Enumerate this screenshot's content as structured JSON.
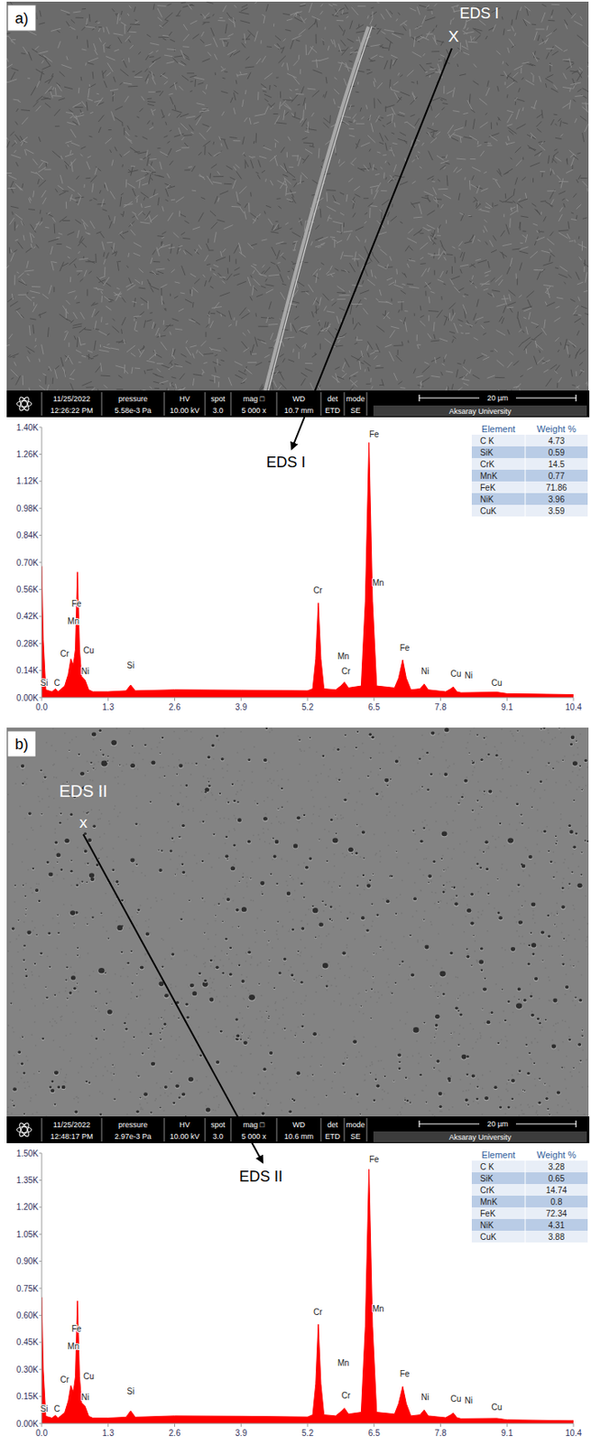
{
  "figure": {
    "panels": [
      {
        "letter": "a)",
        "point_label": "EDS I",
        "point_marker": "X",
        "spectrum_label": "EDS I",
        "info_bar": {
          "date": "11/25/2022",
          "time": "12:26:22 PM",
          "fields": [
            {
              "name": "pressure",
              "value": "5.58e-3 Pa"
            },
            {
              "name": "HV",
              "value": "10.00 kV"
            },
            {
              "name": "spot",
              "value": "3.0"
            },
            {
              "name": "mag □",
              "value": "5 000 x"
            },
            {
              "name": "WD",
              "value": "10.7 mm"
            },
            {
              "name": "det",
              "value": "ETD"
            },
            {
              "name": "mode",
              "value": "SE"
            }
          ],
          "scale_bar": "20 µm",
          "institution": "Aksaray University"
        },
        "table": {
          "header": [
            "Element",
            "Weight %"
          ],
          "rows": [
            [
              "C K",
              4.73
            ],
            [
              "SiK",
              0.59
            ],
            [
              "CrK",
              14.5
            ],
            [
              "MnK",
              0.77
            ],
            [
              "FeK",
              71.86
            ],
            [
              "NiK",
              3.96
            ],
            [
              "CuK",
              3.59
            ]
          ]
        }
      },
      {
        "letter": "b)",
        "point_label": "EDS II",
        "point_marker": "x",
        "spectrum_label": "EDS II",
        "info_bar": {
          "date": "11/25/2022",
          "time": "12:48:17 PM",
          "fields": [
            {
              "name": "pressure",
              "value": "2.97e-3 Pa"
            },
            {
              "name": "HV",
              "value": "10.00 kV"
            },
            {
              "name": "spot",
              "value": "3.0"
            },
            {
              "name": "mag □",
              "value": "5 000 x"
            },
            {
              "name": "WD",
              "value": "10.6 mm"
            },
            {
              "name": "det",
              "value": "ETD"
            },
            {
              "name": "mode",
              "value": "SE"
            }
          ],
          "scale_bar": "20 µm",
          "institution": "Aksaray University"
        },
        "table": {
          "header": [
            "Element",
            "Weight %"
          ],
          "rows": [
            [
              "C K",
              3.28
            ],
            [
              "SiK",
              0.65
            ],
            [
              "CrK",
              14.74
            ],
            [
              "MnK",
              0.8
            ],
            [
              "FeK",
              72.34
            ],
            [
              "NiK",
              4.31
            ],
            [
              "CuK",
              3.88
            ]
          ]
        }
      }
    ]
  },
  "chart_data": [
    {
      "type": "area",
      "color": "#ff0000",
      "x": [
        0,
        0.03,
        0.08,
        0.2,
        0.27,
        0.32,
        0.45,
        0.52,
        0.57,
        0.62,
        0.66,
        0.7,
        0.74,
        0.78,
        0.85,
        0.92,
        1.0,
        1.3,
        1.65,
        1.74,
        1.83,
        2.6,
        3.9,
        5.2,
        5.3,
        5.36,
        5.41,
        5.46,
        5.52,
        5.75,
        5.85,
        5.92,
        6.0,
        6.25,
        6.33,
        6.4,
        6.47,
        6.55,
        6.9,
        6.98,
        7.06,
        7.13,
        7.22,
        7.4,
        7.48,
        7.56,
        7.9,
        8.0,
        8.05,
        8.12,
        8.2,
        8.9,
        9.1,
        10.4
      ],
      "values": [
        680,
        300,
        40,
        30,
        45,
        30,
        60,
        120,
        200,
        170,
        250,
        650,
        250,
        110,
        90,
        40,
        30,
        30,
        35,
        65,
        35,
        40,
        38,
        35,
        45,
        200,
        490,
        200,
        45,
        40,
        60,
        80,
        50,
        60,
        500,
        1320,
        500,
        60,
        50,
        100,
        195,
        100,
        40,
        45,
        70,
        40,
        30,
        45,
        55,
        30,
        25,
        28,
        20,
        15
      ],
      "xlim": [
        0,
        10.4
      ],
      "xticks": [
        {
          "value": 0,
          "label": "0.0"
        },
        1.3,
        2.6,
        3.9,
        5.2,
        6.5,
        7.8,
        9.1,
        10.4
      ],
      "ylim": [
        0,
        1400
      ],
      "yticks": [
        {
          "value": 0,
          "label": "0.00K"
        },
        {
          "value": 140,
          "label": "0.14K"
        },
        {
          "value": 280,
          "label": "0.28K"
        },
        {
          "value": 420,
          "label": "0.42K"
        },
        {
          "value": 560,
          "label": "0.56K"
        },
        {
          "value": 700,
          "label": "0.70K"
        },
        {
          "value": 840,
          "label": "0.84K"
        },
        {
          "value": 980,
          "label": "0.98K"
        },
        {
          "value": 1120,
          "label": "1.12K"
        },
        {
          "value": 1260,
          "label": "1.26K"
        },
        {
          "value": 1400,
          "label": "1.40K"
        }
      ],
      "grid": false,
      "annotations": [
        {
          "text": "Si",
          "x": 0.05,
          "y": 60
        },
        {
          "text": "C",
          "x": 0.3,
          "y": 60
        },
        {
          "text": "Cr",
          "x": 0.45,
          "y": 210
        },
        {
          "text": "Mn",
          "x": 0.62,
          "y": 380
        },
        {
          "text": "Fe",
          "x": 0.68,
          "y": 470
        },
        {
          "text": "Ni",
          "x": 0.85,
          "y": 120
        },
        {
          "text": "Cu",
          "x": 0.92,
          "y": 230
        },
        {
          "text": "Si",
          "x": 1.74,
          "y": 150
        },
        {
          "text": "Cr",
          "x": 5.4,
          "y": 540
        },
        {
          "text": "Mn",
          "x": 5.9,
          "y": 200
        },
        {
          "text": "Cr",
          "x": 5.95,
          "y": 120
        },
        {
          "text": "Fe",
          "x": 6.5,
          "y": 1350
        },
        {
          "text": "Mn",
          "x": 6.58,
          "y": 580
        },
        {
          "text": "Fe",
          "x": 7.1,
          "y": 240
        },
        {
          "text": "Ni",
          "x": 7.5,
          "y": 120
        },
        {
          "text": "Cu",
          "x": 8.1,
          "y": 110
        },
        {
          "text": "Ni",
          "x": 8.35,
          "y": 100
        },
        {
          "text": "Cu",
          "x": 8.9,
          "y": 60
        }
      ]
    },
    {
      "type": "area",
      "color": "#ff0000",
      "x": [
        0,
        0.03,
        0.08,
        0.2,
        0.27,
        0.32,
        0.45,
        0.52,
        0.57,
        0.62,
        0.66,
        0.7,
        0.74,
        0.78,
        0.85,
        0.92,
        1.0,
        1.3,
        1.65,
        1.74,
        1.83,
        2.6,
        3.9,
        5.2,
        5.3,
        5.36,
        5.41,
        5.46,
        5.52,
        5.75,
        5.85,
        5.92,
        6.0,
        6.25,
        6.33,
        6.4,
        6.47,
        6.55,
        6.9,
        6.98,
        7.06,
        7.13,
        7.22,
        7.4,
        7.48,
        7.56,
        7.9,
        8.0,
        8.05,
        8.12,
        8.2,
        8.9,
        9.1,
        10.4
      ],
      "values": [
        700,
        300,
        40,
        30,
        45,
        30,
        60,
        125,
        210,
        175,
        260,
        680,
        260,
        115,
        95,
        40,
        30,
        30,
        35,
        70,
        35,
        42,
        40,
        36,
        48,
        220,
        550,
        220,
        48,
        42,
        65,
        85,
        52,
        62,
        540,
        1410,
        540,
        62,
        52,
        110,
        205,
        110,
        42,
        48,
        75,
        42,
        32,
        48,
        58,
        32,
        26,
        28,
        20,
        15
      ],
      "xlim": [
        0,
        10.4
      ],
      "xticks": [
        {
          "value": 0,
          "label": "0.0"
        },
        1.3,
        2.6,
        3.9,
        5.2,
        6.5,
        7.8,
        9.1,
        10.4
      ],
      "ylim": [
        0,
        1500
      ],
      "yticks": [
        {
          "value": 0,
          "label": "0.00K"
        },
        {
          "value": 150,
          "label": "0.15K"
        },
        {
          "value": 300,
          "label": "0.30K"
        },
        {
          "value": 450,
          "label": "0.45K"
        },
        {
          "value": 600,
          "label": "0.60K"
        },
        {
          "value": 750,
          "label": "0.75K"
        },
        {
          "value": 900,
          "label": "0.90K"
        },
        {
          "value": 1050,
          "label": "1.05K"
        },
        {
          "value": 1200,
          "label": "1.20K"
        },
        {
          "value": 1350,
          "label": "1.35K"
        },
        {
          "value": 1500,
          "label": "1.50K"
        }
      ],
      "grid": false,
      "annotations": [
        {
          "text": "Si",
          "x": 0.05,
          "y": 65
        },
        {
          "text": "C",
          "x": 0.3,
          "y": 65
        },
        {
          "text": "Cr",
          "x": 0.45,
          "y": 225
        },
        {
          "text": "Mn",
          "x": 0.62,
          "y": 410
        },
        {
          "text": "Fe",
          "x": 0.68,
          "y": 510
        },
        {
          "text": "Ni",
          "x": 0.85,
          "y": 130
        },
        {
          "text": "Cu",
          "x": 0.92,
          "y": 245
        },
        {
          "text": "Si",
          "x": 1.74,
          "y": 160
        },
        {
          "text": "Cr",
          "x": 5.4,
          "y": 600
        },
        {
          "text": "Mn",
          "x": 5.9,
          "y": 320
        },
        {
          "text": "Cr",
          "x": 5.95,
          "y": 140
        },
        {
          "text": "Fe",
          "x": 6.5,
          "y": 1450
        },
        {
          "text": "Mn",
          "x": 6.58,
          "y": 620
        },
        {
          "text": "Fe",
          "x": 7.1,
          "y": 260
        },
        {
          "text": "Ni",
          "x": 7.5,
          "y": 130
        },
        {
          "text": "Cu",
          "x": 8.1,
          "y": 120
        },
        {
          "text": "Ni",
          "x": 8.35,
          "y": 110
        },
        {
          "text": "Cu",
          "x": 8.9,
          "y": 75
        }
      ]
    }
  ]
}
